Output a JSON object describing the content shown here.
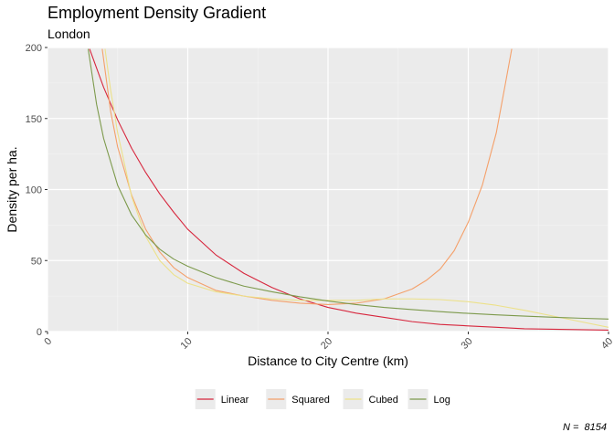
{
  "chart_data": {
    "type": "line",
    "title": "Employment Density Gradient",
    "subtitle": "London",
    "xlabel": "Distance to City Centre (km)",
    "ylabel": "Density per ha.",
    "caption": "N =  8154",
    "xlim": [
      0,
      40
    ],
    "ylim": [
      0,
      200
    ],
    "x_ticks": [
      0,
      10,
      20,
      30,
      40
    ],
    "y_ticks": [
      0,
      50,
      100,
      150,
      200
    ],
    "grid": true,
    "legend_position": "bottom",
    "series": [
      {
        "name": "Linear",
        "color": "#d7263d",
        "points": [
          [
            3.0,
            199
          ],
          [
            4.0,
            172
          ],
          [
            5.0,
            149
          ],
          [
            6.0,
            129
          ],
          [
            7.0,
            112
          ],
          [
            8.0,
            97
          ],
          [
            9.0,
            84
          ],
          [
            10.0,
            72
          ],
          [
            12.0,
            54
          ],
          [
            14.0,
            41
          ],
          [
            16.0,
            31
          ],
          [
            18.0,
            23
          ],
          [
            20.0,
            17
          ],
          [
            22.0,
            13
          ],
          [
            24.0,
            10
          ],
          [
            26.0,
            7
          ],
          [
            28.0,
            5
          ],
          [
            30.0,
            4
          ],
          [
            32.0,
            3
          ],
          [
            34.0,
            2
          ],
          [
            37.0,
            1.5
          ],
          [
            40.0,
            1
          ]
        ]
      },
      {
        "name": "Squared",
        "color": "#f4a06a",
        "points": [
          [
            3.9,
            199
          ],
          [
            4.5,
            155
          ],
          [
            5.0,
            130
          ],
          [
            6.0,
            96
          ],
          [
            7.0,
            72
          ],
          [
            8.0,
            56
          ],
          [
            9.0,
            45
          ],
          [
            10.0,
            38
          ],
          [
            12.0,
            29
          ],
          [
            14.0,
            25
          ],
          [
            16.0,
            22
          ],
          [
            18.0,
            20
          ],
          [
            20.0,
            19
          ],
          [
            22.0,
            20
          ],
          [
            24.0,
            23
          ],
          [
            26.0,
            30
          ],
          [
            27.0,
            36
          ],
          [
            28.0,
            44
          ],
          [
            29.0,
            57
          ],
          [
            30.0,
            77
          ],
          [
            31.0,
            103
          ],
          [
            32.0,
            140
          ],
          [
            32.6,
            172
          ],
          [
            33.1,
            199
          ]
        ]
      },
      {
        "name": "Cubed",
        "color": "#ece18a",
        "points": [
          [
            4.1,
            199
          ],
          [
            4.5,
            170
          ],
          [
            5.0,
            140
          ],
          [
            6.0,
            95
          ],
          [
            7.0,
            67
          ],
          [
            8.0,
            50
          ],
          [
            9.0,
            40
          ],
          [
            10.0,
            34
          ],
          [
            12.0,
            28
          ],
          [
            14.0,
            25
          ],
          [
            16.0,
            23
          ],
          [
            18.0,
            22
          ],
          [
            20.0,
            22
          ],
          [
            22.0,
            22
          ],
          [
            24.0,
            23
          ],
          [
            26.0,
            23
          ],
          [
            28.0,
            22.5
          ],
          [
            30.0,
            21
          ],
          [
            32.0,
            18.5
          ],
          [
            34.0,
            15
          ],
          [
            36.0,
            11
          ],
          [
            38.0,
            7
          ],
          [
            40.0,
            3
          ]
        ]
      },
      {
        "name": "Log",
        "color": "#7d9a4c",
        "points": [
          [
            2.9,
            199
          ],
          [
            3.5,
            160
          ],
          [
            4.0,
            136
          ],
          [
            5.0,
            103
          ],
          [
            6.0,
            82
          ],
          [
            7.0,
            68
          ],
          [
            8.0,
            58
          ],
          [
            9.0,
            51
          ],
          [
            10.0,
            46
          ],
          [
            12.0,
            38
          ],
          [
            14.0,
            32
          ],
          [
            16.0,
            28
          ],
          [
            18.0,
            24.5
          ],
          [
            20.0,
            21.5
          ],
          [
            22.0,
            19
          ],
          [
            24.0,
            17
          ],
          [
            26.0,
            15.5
          ],
          [
            28.0,
            14
          ],
          [
            30.0,
            12.8
          ],
          [
            32.0,
            11.8
          ],
          [
            34.0,
            10.9
          ],
          [
            36.0,
            10.1
          ],
          [
            38.0,
            9.4
          ],
          [
            40.0,
            8.8
          ]
        ]
      }
    ]
  },
  "colors": {
    "panel_background": "#ebebeb",
    "grid_major": "#ffffff",
    "grid_minor": "#f5f5f5",
    "axis_text": "#4d4d4d",
    "text": "#000000"
  }
}
